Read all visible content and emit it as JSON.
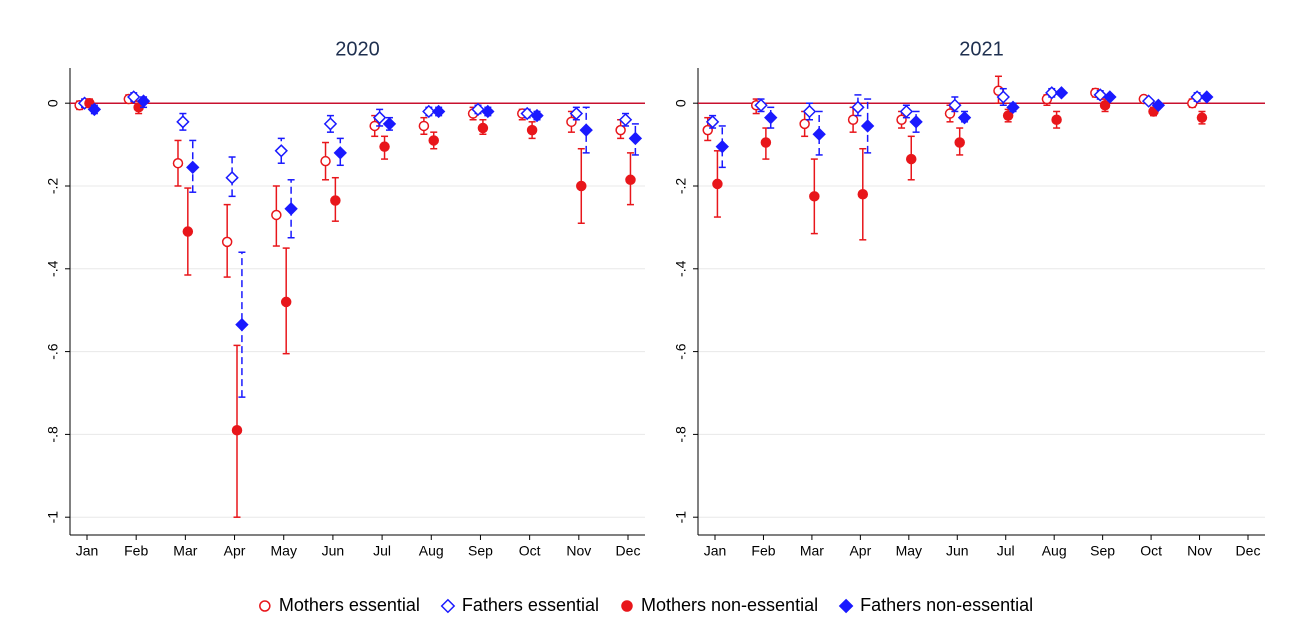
{
  "chart_data": [
    {
      "type": "scatter",
      "title": "2020",
      "categories": [
        "Jan",
        "Feb",
        "Mar",
        "Apr",
        "May",
        "Jun",
        "Jul",
        "Aug",
        "Sep",
        "Oct",
        "Nov",
        "Dec"
      ],
      "ylim": [
        -1.043,
        0.085
      ],
      "yticks": [
        {
          "value": -1,
          "label": "-1"
        },
        {
          "value": -0.8,
          "label": "-.8"
        },
        {
          "value": -0.6,
          "label": "-.6"
        },
        {
          "value": -0.4,
          "label": "-.4"
        },
        {
          "value": -0.2,
          "label": "-.2"
        },
        0
      ],
      "grid": true,
      "reference_line": 0,
      "reference_color": "#c8102e",
      "series": [
        {
          "name": "Mothers essential",
          "color": "#e8161b",
          "marker": "circle-open",
          "dashed": false,
          "values": [
            -0.005,
            0.01,
            -0.145,
            -0.335,
            -0.27,
            -0.14,
            -0.055,
            -0.055,
            -0.025,
            -0.025,
            -0.045,
            -0.065
          ],
          "lower": [
            -0.015,
            0.0,
            -0.2,
            -0.42,
            -0.345,
            -0.185,
            -0.08,
            -0.075,
            -0.04,
            -0.04,
            -0.07,
            -0.085
          ],
          "upper": [
            0.005,
            0.02,
            -0.09,
            -0.245,
            -0.2,
            -0.095,
            -0.03,
            -0.035,
            -0.01,
            -0.015,
            -0.02,
            -0.04
          ]
        },
        {
          "name": "Fathers essential",
          "color": "#1a1aff",
          "marker": "diamond-open",
          "dashed": true,
          "values": [
            0.0,
            0.015,
            -0.045,
            -0.18,
            -0.115,
            -0.05,
            -0.035,
            -0.02,
            -0.015,
            -0.025,
            -0.025,
            -0.04
          ],
          "lower": [
            -0.01,
            0.005,
            -0.065,
            -0.225,
            -0.145,
            -0.07,
            -0.055,
            -0.03,
            -0.025,
            -0.035,
            -0.04,
            -0.055
          ],
          "upper": [
            0.01,
            0.025,
            -0.025,
            -0.13,
            -0.085,
            -0.03,
            -0.015,
            -0.01,
            -0.005,
            -0.015,
            -0.01,
            -0.025
          ]
        },
        {
          "name": "Mothers non-essential",
          "color": "#e8161b",
          "marker": "circle",
          "dashed": false,
          "values": [
            0.0,
            -0.01,
            -0.31,
            -0.79,
            -0.48,
            -0.235,
            -0.105,
            -0.09,
            -0.06,
            -0.065,
            -0.2,
            -0.185
          ],
          "lower": [
            -0.01,
            -0.025,
            -0.415,
            -1.0,
            -0.605,
            -0.285,
            -0.135,
            -0.11,
            -0.075,
            -0.085,
            -0.29,
            -0.245
          ],
          "upper": [
            0.01,
            0.005,
            -0.205,
            -0.585,
            -0.35,
            -0.18,
            -0.08,
            -0.07,
            -0.04,
            -0.045,
            -0.11,
            -0.12
          ]
        },
        {
          "name": "Fathers non-essential",
          "color": "#1a1aff",
          "marker": "diamond",
          "dashed": true,
          "values": [
            -0.015,
            0.005,
            -0.155,
            -0.535,
            -0.255,
            -0.12,
            -0.05,
            -0.02,
            -0.02,
            -0.03,
            -0.065,
            -0.085
          ],
          "lower": [
            -0.025,
            -0.01,
            -0.215,
            -0.71,
            -0.325,
            -0.15,
            -0.065,
            -0.03,
            -0.03,
            -0.04,
            -0.12,
            -0.125
          ],
          "upper": [
            -0.005,
            0.015,
            -0.09,
            -0.36,
            -0.185,
            -0.085,
            -0.035,
            -0.01,
            -0.01,
            -0.02,
            -0.01,
            -0.05
          ]
        }
      ]
    },
    {
      "type": "scatter",
      "title": "2021",
      "categories": [
        "Jan",
        "Feb",
        "Mar",
        "Apr",
        "May",
        "Jun",
        "Jul",
        "Aug",
        "Sep",
        "Oct",
        "Nov",
        "Dec"
      ],
      "ylim": [
        -1.043,
        0.085
      ],
      "yticks": [
        {
          "value": -1,
          "label": "-1"
        },
        {
          "value": -0.8,
          "label": "-.8"
        },
        {
          "value": -0.6,
          "label": "-.6"
        },
        {
          "value": -0.4,
          "label": "-.4"
        },
        {
          "value": -0.2,
          "label": "-.2"
        },
        0
      ],
      "grid": true,
      "reference_line": 0,
      "reference_color": "#c8102e",
      "series": [
        {
          "color": "#e8161b",
          "marker": "circle-open",
          "dashed": false,
          "values": [
            -0.065,
            -0.005,
            -0.05,
            -0.04,
            -0.04,
            -0.025,
            0.03,
            0.01,
            0.025,
            0.01,
            0.0,
            null
          ],
          "lower": [
            -0.09,
            -0.025,
            -0.08,
            -0.07,
            -0.06,
            -0.045,
            0.0,
            -0.005,
            0.015,
            0.0,
            -0.01,
            null
          ],
          "upper": [
            -0.035,
            0.01,
            -0.02,
            -0.01,
            -0.02,
            -0.005,
            0.065,
            0.02,
            0.035,
            0.015,
            0.01,
            null
          ]
        },
        {
          "color": "#1a1aff",
          "marker": "diamond-open",
          "dashed": true,
          "values": [
            -0.045,
            -0.005,
            -0.02,
            -0.01,
            -0.02,
            -0.005,
            0.015,
            0.025,
            0.02,
            0.005,
            0.015,
            null
          ],
          "lower": [
            -0.06,
            -0.02,
            -0.04,
            -0.03,
            -0.035,
            -0.02,
            -0.005,
            0.015,
            0.01,
            0.0,
            0.005,
            null
          ],
          "upper": [
            -0.03,
            0.01,
            0.0,
            0.02,
            -0.005,
            0.015,
            0.035,
            0.035,
            0.03,
            0.01,
            0.025,
            null
          ]
        },
        {
          "color": "#e8161b",
          "marker": "circle",
          "dashed": false,
          "values": [
            -0.195,
            -0.095,
            -0.225,
            -0.22,
            -0.135,
            -0.095,
            -0.03,
            -0.04,
            -0.005,
            -0.02,
            -0.035,
            null
          ],
          "lower": [
            -0.275,
            -0.135,
            -0.315,
            -0.33,
            -0.185,
            -0.125,
            -0.045,
            -0.06,
            -0.02,
            -0.03,
            -0.05,
            null
          ],
          "upper": [
            -0.115,
            -0.06,
            -0.135,
            -0.11,
            -0.08,
            -0.06,
            -0.015,
            -0.02,
            0.01,
            -0.01,
            -0.02,
            null
          ]
        },
        {
          "color": "#1a1aff",
          "marker": "diamond",
          "dashed": true,
          "values": [
            -0.105,
            -0.035,
            -0.075,
            -0.055,
            -0.045,
            -0.035,
            -0.01,
            0.025,
            0.015,
            -0.005,
            0.015,
            null
          ],
          "lower": [
            -0.155,
            -0.06,
            -0.125,
            -0.12,
            -0.07,
            -0.045,
            -0.02,
            0.02,
            0.01,
            -0.01,
            0.01,
            null
          ],
          "upper": [
            -0.055,
            -0.01,
            -0.02,
            0.01,
            -0.02,
            -0.02,
            0.0,
            0.03,
            0.02,
            0.0,
            0.02,
            null
          ]
        }
      ]
    }
  ]
}
